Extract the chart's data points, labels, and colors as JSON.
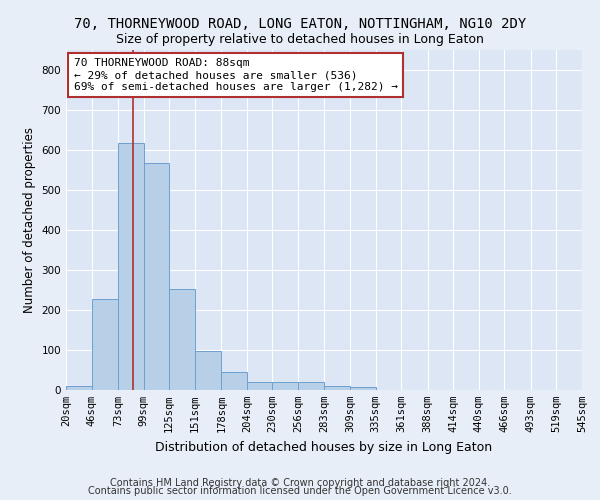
{
  "title_line1": "70, THORNEYWOOD ROAD, LONG EATON, NOTTINGHAM, NG10 2DY",
  "title_line2": "Size of property relative to detached houses in Long Eaton",
  "xlabel": "Distribution of detached houses by size in Long Eaton",
  "ylabel": "Number of detached properties",
  "footer_line1": "Contains HM Land Registry data © Crown copyright and database right 2024.",
  "footer_line2": "Contains public sector information licensed under the Open Government Licence v3.0.",
  "bar_edges": [
    20,
    46,
    73,
    99,
    125,
    151,
    178,
    204,
    230,
    256,
    283,
    309,
    335,
    361,
    388,
    414,
    440,
    466,
    493,
    519,
    545
  ],
  "bar_heights": [
    10,
    228,
    617,
    567,
    252,
    97,
    44,
    20,
    20,
    19,
    10,
    7,
    0,
    0,
    0,
    0,
    0,
    0,
    0,
    0
  ],
  "bar_color": "#b8cfe8",
  "bar_edge_color": "#6ca0d0",
  "vline_x": 88,
  "vline_color": "#b03030",
  "annotation_text": "70 THORNEYWOOD ROAD: 88sqm\n← 29% of detached houses are smaller (536)\n69% of semi-detached houses are larger (1,282) →",
  "annotation_box_color": "#b03030",
  "ylim": [
    0,
    850
  ],
  "yticks": [
    0,
    100,
    200,
    300,
    400,
    500,
    600,
    700,
    800
  ],
  "bg_color": "#e8eef7",
  "plot_bg_color": "#dce6f5",
  "grid_color": "#ffffff",
  "title1_fontsize": 10,
  "title2_fontsize": 9,
  "ylabel_fontsize": 8.5,
  "xlabel_fontsize": 9,
  "tick_label_fontsize": 7.5,
  "footer_fontsize": 7,
  "ann_fontsize": 8
}
